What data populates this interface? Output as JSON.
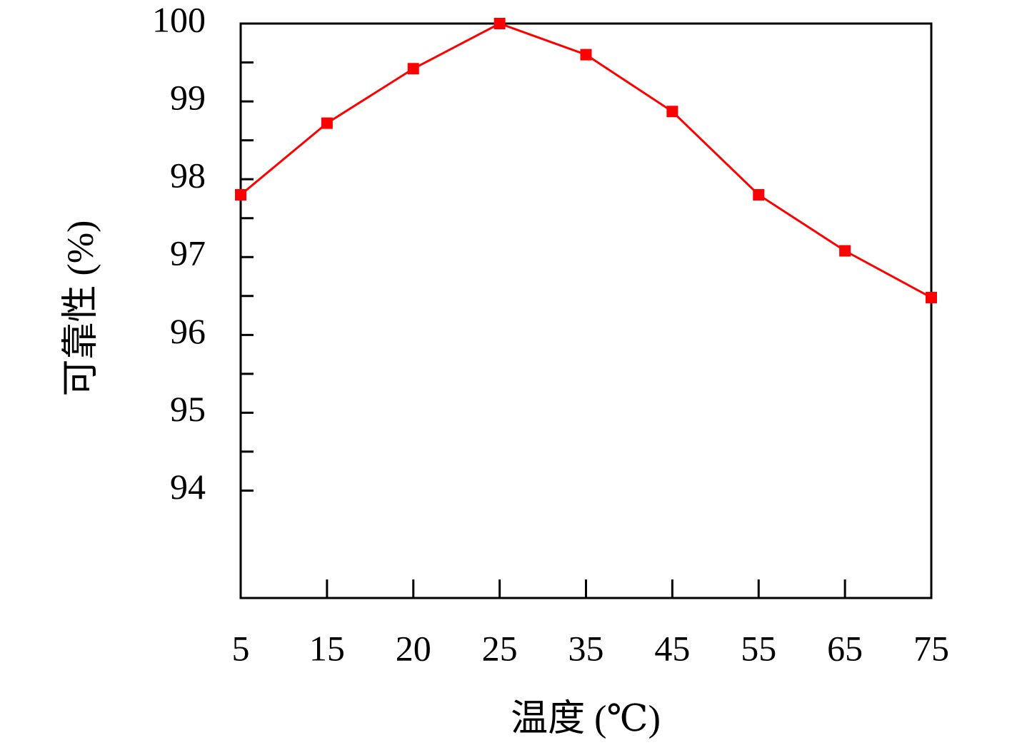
{
  "chart_data": {
    "type": "line",
    "x_label": "温度 (℃)",
    "y_label": "可靠性 (%)",
    "categories": [
      "5",
      "15",
      "20",
      "25",
      "35",
      "45",
      "55",
      "65",
      "75"
    ],
    "series": [
      {
        "name": "可靠性",
        "color": "#ff0000",
        "values": [
          97.8,
          98.72,
          99.42,
          100,
          99.6,
          98.87,
          97.8,
          97.08,
          96.48
        ]
      }
    ],
    "ylim": [
      92.62,
      100
    ],
    "yticks": [
      94,
      95,
      96,
      97,
      98,
      99,
      100
    ],
    "minor_yticks": [
      94.5,
      95.5,
      96.5,
      97.5,
      98.5,
      99.5
    ],
    "grid": false,
    "legend": false
  }
}
